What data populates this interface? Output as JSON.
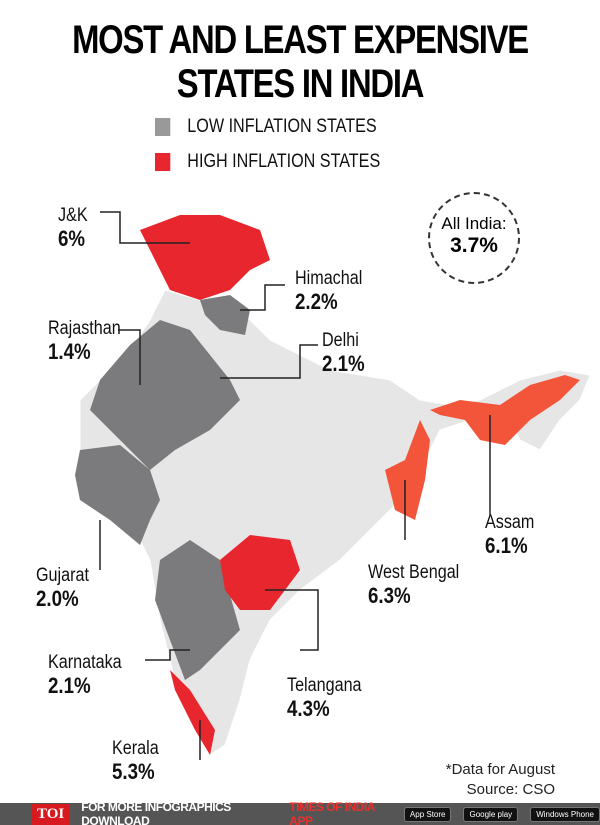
{
  "title": {
    "line1": "MOST AND LEAST EXPENSIVE",
    "line2": "STATES IN INDIA"
  },
  "legend": [
    {
      "label": "LOW INFLATION STATES",
      "color": "#999999"
    },
    {
      "label": "HIGH INFLATION STATES",
      "color": "#e8262d"
    }
  ],
  "colors": {
    "low": "#7b7b7d",
    "high": "#e8262d",
    "high_east": "#f2553a",
    "other": "#e6e6e6"
  },
  "all_india": {
    "label": "All India:",
    "value": "3.7%"
  },
  "states": [
    {
      "name": "J&K",
      "value": "6%",
      "category": "high"
    },
    {
      "name": "Himachal",
      "value": "2.2%",
      "category": "low"
    },
    {
      "name": "Rajasthan",
      "value": "1.4%",
      "category": "low"
    },
    {
      "name": "Delhi",
      "value": "2.1%",
      "category": "low"
    },
    {
      "name": "Assam",
      "value": "6.1%",
      "category": "high"
    },
    {
      "name": "West Bengal",
      "value": "6.3%",
      "category": "high"
    },
    {
      "name": "Gujarat",
      "value": "2.0%",
      "category": "low"
    },
    {
      "name": "Karnataka",
      "value": "2.1%",
      "category": "low"
    },
    {
      "name": "Telangana",
      "value": "4.3%",
      "category": "high"
    },
    {
      "name": "Kerala",
      "value": "5.3%",
      "category": "high"
    }
  ],
  "note": {
    "line1": "*Data for August",
    "line2": "Source: CSO"
  },
  "footer": {
    "logo": "TOI",
    "text": "FOR MORE  INFOGRAPHICS DOWNLOAD",
    "app": "TIMES OF INDIA  APP",
    "stores": [
      "App Store",
      "Google play",
      "Windows Phone"
    ]
  }
}
